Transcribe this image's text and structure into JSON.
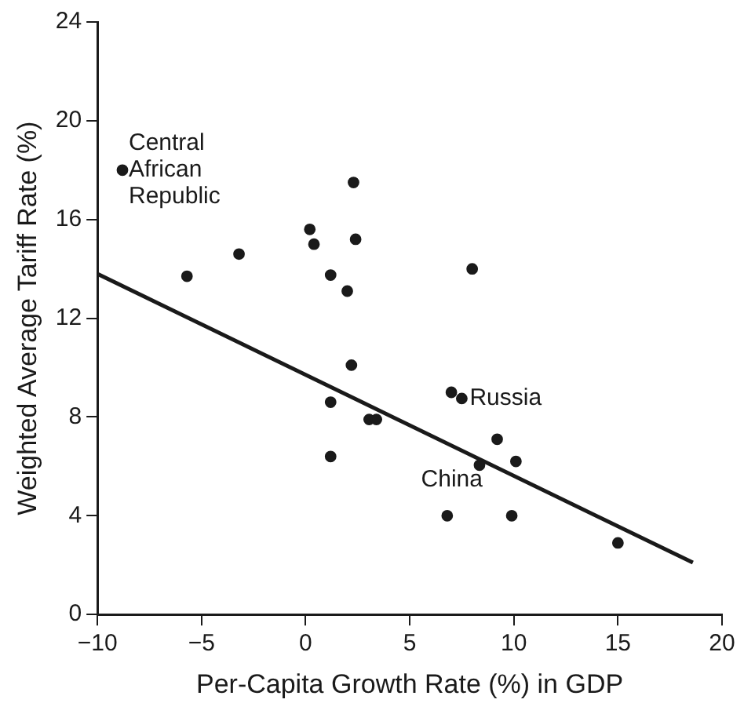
{
  "chart_data": {
    "type": "scatter",
    "xlabel": "Per-Capita Growth Rate (%) in GDP",
    "ylabel": "Weighted Average Tariff Rate (%)",
    "xlim": [
      -10,
      20
    ],
    "xticks": [
      -10,
      -5,
      0,
      5,
      10,
      15,
      20
    ],
    "ylim": [
      0,
      24
    ],
    "yticks": [
      0,
      4,
      8,
      12,
      16,
      20,
      24
    ],
    "grid": false,
    "legend": false,
    "marker": "circle",
    "series": [
      {
        "color": "#1a1a1a",
        "x": [
          -8.8,
          -5.7,
          -3.2,
          0.2,
          0.4,
          2.3,
          2.4,
          1.2,
          2.0,
          8.0,
          2.2,
          1.2,
          3.05,
          3.4,
          7.0,
          7.5,
          9.2,
          10.1,
          8.35,
          1.2,
          6.8,
          9.9,
          15.0
        ],
        "values": [
          18.0,
          13.7,
          14.6,
          15.6,
          15.0,
          17.5,
          15.2,
          13.75,
          13.1,
          14.0,
          10.1,
          8.6,
          7.9,
          7.9,
          9.0,
          8.75,
          7.1,
          6.2,
          6.05,
          6.4,
          4.0,
          4.0,
          2.9
        ]
      },
      {
        "type": "line",
        "color": "#1a1a1a",
        "x": [
          -10,
          18.6
        ],
        "values": [
          13.8,
          2.1
        ],
        "marker": "none",
        "line_style": "solid"
      }
    ],
    "annotations": [
      {
        "text": "Central African Republic",
        "x": -8.8,
        "y": 18.0
      },
      {
        "text": "Russia",
        "x": 7.5,
        "y": 8.75
      },
      {
        "text": "China",
        "x": 8.35,
        "y": 6.05
      }
    ]
  }
}
